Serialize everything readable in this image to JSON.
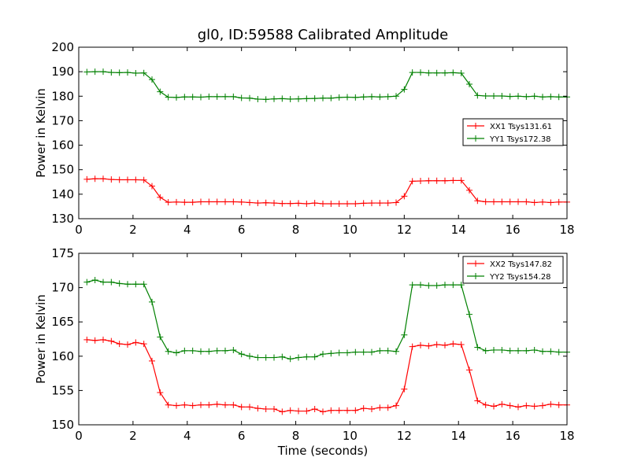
{
  "figure": {
    "title": "gl0, ID:59588 Calibrated Amplitude",
    "xlabel": "Time (seconds)"
  },
  "chart_data": [
    {
      "type": "line",
      "title": "gl0, ID:59588 Calibrated Amplitude",
      "xlabel": "",
      "ylabel": "Power in Kelvin",
      "xlim": [
        0,
        18
      ],
      "ylim": [
        130,
        200
      ],
      "xticks": [
        "0",
        "2",
        "4",
        "6",
        "8",
        "10",
        "12",
        "14",
        "16",
        "18"
      ],
      "yticks": [
        "130",
        "140",
        "150",
        "160",
        "170",
        "180",
        "190",
        "200"
      ],
      "legend_position": "center-right",
      "grid": false,
      "x": [
        0.3,
        0.6,
        0.9,
        1.2,
        1.5,
        1.8,
        2.1,
        2.4,
        2.7,
        3.0,
        3.3,
        3.6,
        3.9,
        4.2,
        4.5,
        4.8,
        5.1,
        5.4,
        5.7,
        6.0,
        6.3,
        6.6,
        6.9,
        7.2,
        7.5,
        7.8,
        8.1,
        8.4,
        8.7,
        9.0,
        9.3,
        9.6,
        9.9,
        10.2,
        10.5,
        10.8,
        11.1,
        11.4,
        11.7,
        12.0,
        12.3,
        12.6,
        12.9,
        13.2,
        13.5,
        13.8,
        14.1,
        14.4,
        14.7,
        15.0,
        15.3,
        15.6,
        15.9,
        16.2,
        16.5,
        16.8,
        17.1,
        17.4,
        17.7,
        18.0
      ],
      "series": [
        {
          "name": "XX1 Tsys131.61",
          "color": "#ff0000",
          "values": [
            146.1,
            146.3,
            146.3,
            146.0,
            145.9,
            145.9,
            145.9,
            145.8,
            143.3,
            138.7,
            136.7,
            136.8,
            136.7,
            136.7,
            136.9,
            136.9,
            136.9,
            136.9,
            136.9,
            136.8,
            136.6,
            136.4,
            136.5,
            136.4,
            136.2,
            136.2,
            136.3,
            136.1,
            136.4,
            136.1,
            136.1,
            136.1,
            136.1,
            136.1,
            136.3,
            136.4,
            136.4,
            136.4,
            136.6,
            139.2,
            145.3,
            145.4,
            145.5,
            145.5,
            145.5,
            145.6,
            145.6,
            141.6,
            137.3,
            136.9,
            136.9,
            136.9,
            136.9,
            136.9,
            136.9,
            136.6,
            136.8,
            136.6,
            136.8,
            136.8
          ]
        },
        {
          "name": "YY1 Tsys172.38",
          "color": "#008000",
          "values": [
            189.9,
            190.0,
            190.0,
            189.7,
            189.6,
            189.7,
            189.4,
            189.5,
            186.8,
            181.8,
            179.6,
            179.5,
            179.7,
            179.7,
            179.6,
            179.8,
            179.8,
            179.8,
            179.8,
            179.3,
            179.2,
            178.8,
            178.7,
            178.9,
            179.0,
            178.8,
            178.9,
            179.0,
            179.1,
            179.2,
            179.2,
            179.5,
            179.6,
            179.5,
            179.7,
            179.8,
            179.7,
            179.8,
            180.0,
            182.8,
            189.7,
            189.7,
            189.5,
            189.5,
            189.5,
            189.6,
            189.4,
            184.9,
            180.3,
            180.1,
            180.1,
            180.1,
            179.9,
            180.0,
            179.8,
            180.0,
            179.7,
            179.8,
            179.7,
            179.7
          ]
        }
      ]
    },
    {
      "type": "line",
      "title": "",
      "xlabel": "Time (seconds)",
      "ylabel": "Power in Kelvin",
      "xlim": [
        0,
        18
      ],
      "ylim": [
        150,
        175
      ],
      "xticks": [
        "0",
        "2",
        "4",
        "6",
        "8",
        "10",
        "12",
        "14",
        "16",
        "18"
      ],
      "yticks": [
        "150",
        "155",
        "160",
        "165",
        "170",
        "175"
      ],
      "legend_position": "top-right",
      "grid": false,
      "x": [
        0.3,
        0.6,
        0.9,
        1.2,
        1.5,
        1.8,
        2.1,
        2.4,
        2.7,
        3.0,
        3.3,
        3.6,
        3.9,
        4.2,
        4.5,
        4.8,
        5.1,
        5.4,
        5.7,
        6.0,
        6.3,
        6.6,
        6.9,
        7.2,
        7.5,
        7.8,
        8.1,
        8.4,
        8.7,
        9.0,
        9.3,
        9.6,
        9.9,
        10.2,
        10.5,
        10.8,
        11.1,
        11.4,
        11.7,
        12.0,
        12.3,
        12.6,
        12.9,
        13.2,
        13.5,
        13.8,
        14.1,
        14.4,
        14.7,
        15.0,
        15.3,
        15.6,
        15.9,
        16.2,
        16.5,
        16.8,
        17.1,
        17.4,
        17.7,
        18.0
      ],
      "series": [
        {
          "name": "XX2 Tsys147.82",
          "color": "#ff0000",
          "values": [
            162.4,
            162.3,
            162.4,
            162.2,
            161.8,
            161.7,
            162.0,
            161.8,
            159.3,
            154.7,
            152.9,
            152.8,
            152.9,
            152.8,
            152.9,
            152.9,
            153.0,
            152.9,
            152.9,
            152.6,
            152.6,
            152.4,
            152.3,
            152.3,
            151.9,
            152.1,
            152.0,
            152.0,
            152.3,
            151.9,
            152.1,
            152.1,
            152.1,
            152.1,
            152.4,
            152.3,
            152.5,
            152.5,
            152.8,
            155.2,
            161.4,
            161.6,
            161.5,
            161.7,
            161.6,
            161.8,
            161.7,
            158.0,
            153.5,
            152.9,
            152.7,
            153.0,
            152.8,
            152.6,
            152.8,
            152.7,
            152.8,
            153.0,
            152.9,
            152.9
          ]
        },
        {
          "name": "YY2 Tsys154.28",
          "color": "#008000",
          "values": [
            170.8,
            171.1,
            170.8,
            170.8,
            170.6,
            170.5,
            170.5,
            170.5,
            167.9,
            162.8,
            160.7,
            160.5,
            160.8,
            160.8,
            160.7,
            160.7,
            160.8,
            160.8,
            160.9,
            160.3,
            160.0,
            159.8,
            159.8,
            159.8,
            159.9,
            159.6,
            159.8,
            159.9,
            159.9,
            160.3,
            160.4,
            160.5,
            160.5,
            160.6,
            160.6,
            160.6,
            160.8,
            160.8,
            160.7,
            163.1,
            170.4,
            170.4,
            170.3,
            170.3,
            170.4,
            170.4,
            170.4,
            166.1,
            161.3,
            160.8,
            160.9,
            160.9,
            160.8,
            160.8,
            160.8,
            160.9,
            160.7,
            160.7,
            160.6,
            160.6
          ]
        }
      ]
    }
  ]
}
